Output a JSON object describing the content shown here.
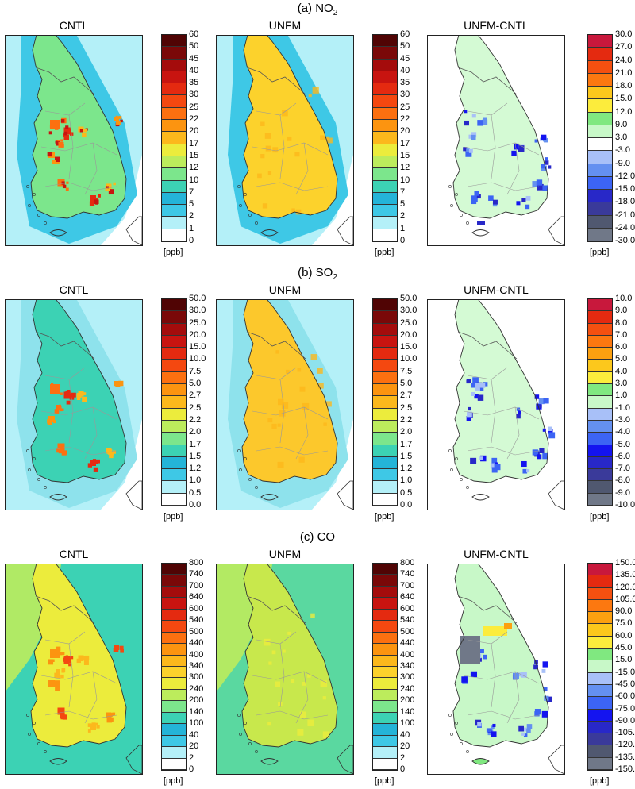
{
  "sections": [
    {
      "label_prefix": "(a) NO",
      "label_sub": "2",
      "panels": [
        {
          "title": "CNTL",
          "kind": "abs"
        },
        {
          "title": "UNFM",
          "kind": "abs"
        },
        {
          "title": "UNFM-CNTL",
          "kind": "diff"
        }
      ],
      "abs_scale": {
        "ticks": [
          "60",
          "50",
          "45",
          "40",
          "35",
          "30",
          "25",
          "22",
          "20",
          "17",
          "15",
          "12",
          "10",
          "7",
          "5",
          "2",
          "1",
          "0"
        ],
        "unit": "[ppb]"
      },
      "diff_scale": {
        "ticks": [
          "30.0",
          "27.0",
          "24.0",
          "21.0",
          "18.0",
          "15.0",
          "12.0",
          "9.0",
          "3.0",
          "-3.0",
          "-9.0",
          "-12.0",
          "-15.0",
          "-18.0",
          "-21.0",
          "-24.0",
          "-30.0"
        ],
        "unit": "[ppb]"
      }
    },
    {
      "label_prefix": "(b) SO",
      "label_sub": "2",
      "panels": [
        {
          "title": "CNTL",
          "kind": "abs"
        },
        {
          "title": "UNFM",
          "kind": "abs"
        },
        {
          "title": "UNFM-CNTL",
          "kind": "diff"
        }
      ],
      "abs_scale": {
        "ticks": [
          "50.0",
          "30.0",
          "25.0",
          "20.0",
          "15.0",
          "10.0",
          "7.5",
          "5.0",
          "2.7",
          "2.5",
          "2.2",
          "2.0",
          "1.7",
          "1.5",
          "1.2",
          "1.0",
          "0.5",
          "0.0"
        ],
        "unit": "[ppb]"
      },
      "diff_scale": {
        "ticks": [
          "10.0",
          "9.0",
          "8.0",
          "7.0",
          "6.0",
          "5.0",
          "4.0",
          "3.0",
          "1.0",
          "-1.0",
          "-3.0",
          "-4.0",
          "-5.0",
          "-6.0",
          "-7.0",
          "-8.0",
          "-9.0",
          "-10.0"
        ],
        "unit": "[ppb]"
      }
    },
    {
      "label_prefix": "(c) CO",
      "label_sub": "",
      "panels": [
        {
          "title": "CNTL",
          "kind": "abs"
        },
        {
          "title": "UNFM",
          "kind": "abs"
        },
        {
          "title": "UNFM-CNTL",
          "kind": "diff"
        }
      ],
      "abs_scale": {
        "ticks": [
          "800",
          "740",
          "700",
          "640",
          "600",
          "540",
          "500",
          "440",
          "400",
          "340",
          "300",
          "240",
          "200",
          "140",
          "100",
          "40",
          "20",
          "2",
          "0"
        ],
        "unit": "[ppb]"
      },
      "diff_scale": {
        "ticks": [
          "150.0",
          "135.0",
          "120.0",
          "105.0",
          "90.0",
          "75.0",
          "60.0",
          "45.0",
          "15.0",
          "-15.0",
          "-45.0",
          "-60.0",
          "-75.0",
          "-90.0",
          "-105.0",
          "-120.0",
          "-135.0",
          "-150.0"
        ],
        "unit": "[ppb]"
      }
    }
  ],
  "colors": {
    "abs": [
      "#ffffff",
      "#b4f0f8",
      "#3ec8e6",
      "#24b4d8",
      "#3cd2b4",
      "#7ce68c",
      "#bcec5c",
      "#ecec3c",
      "#fcd22c",
      "#fcb81c",
      "#fc9410",
      "#fc7010",
      "#f44810",
      "#e42a10",
      "#c81410",
      "#a40c0c",
      "#7a0808",
      "#500404"
    ],
    "diff": [
      "#707888",
      "#505870",
      "#3a3a9a",
      "#2828c8",
      "#1414f0",
      "#3c64f4",
      "#6490f0",
      "#a8c0f8",
      "#ffffff",
      "#c8f8c8",
      "#80e880",
      "#fcec3c",
      "#fcc81c",
      "#fca010",
      "#fc7810",
      "#f45010",
      "#e42a10",
      "#c8183c"
    ]
  }
}
